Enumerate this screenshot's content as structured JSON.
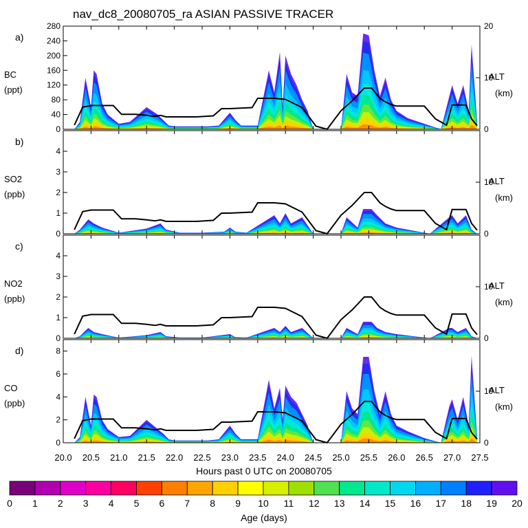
{
  "chart_data": {
    "type": "area",
    "title": "nav_dc8_20080705_ra ASIAN PASSIVE TRACER",
    "xlabel": "Hours past 0 UTC on 20080705",
    "xlim": [
      20.0,
      27.5
    ],
    "x_ticks": [
      "20.0",
      "20.5",
      "21.0",
      "21.5",
      "22.0",
      "22.5",
      "23.0",
      "23.5",
      "24.0",
      "24.5",
      "25.0",
      "25.5",
      "26.0",
      "26.5",
      "27.0",
      "27.5"
    ],
    "altitude_axis": {
      "label": "ALT",
      "units": "(km)",
      "range": [
        0,
        20
      ],
      "ticks": [
        "0",
        "10",
        "20"
      ]
    },
    "altitude_track": {
      "x": [
        20.2,
        20.35,
        20.5,
        20.9,
        21.05,
        21.3,
        21.5,
        21.65,
        21.75,
        21.85,
        22.1,
        22.4,
        22.7,
        22.85,
        23.0,
        23.4,
        23.5,
        23.8,
        24.0,
        24.3,
        24.55,
        24.75,
        25.0,
        25.2,
        25.42,
        25.55,
        25.7,
        25.8,
        25.9,
        26.0,
        26.5,
        26.7,
        26.9,
        27.0,
        27.25,
        27.35,
        27.45
      ],
      "y": [
        0.8,
        4.3,
        4.6,
        4.6,
        2.9,
        2.9,
        2.7,
        2.5,
        2.7,
        2.4,
        2.4,
        2.4,
        2.6,
        4.0,
        4.0,
        4.2,
        6.0,
        6.0,
        5.8,
        4.2,
        0.6,
        0,
        3.6,
        5.5,
        8.0,
        8.0,
        6.0,
        5.3,
        4.8,
        4.5,
        4.5,
        2.0,
        0.8,
        4.7,
        4.7,
        2.0,
        0.7
      ]
    },
    "panels": [
      {
        "letter": "a)",
        "species": "BC",
        "units": "(ppt)",
        "ylim": [
          0,
          280
        ],
        "ticks": [
          "0",
          "40",
          "80",
          "120",
          "160",
          "200",
          "240",
          "280"
        ],
        "x": [
          20.2,
          20.3,
          20.4,
          20.5,
          20.55,
          20.6,
          20.7,
          20.8,
          21.0,
          21.2,
          21.5,
          21.7,
          21.8,
          21.9,
          22.0,
          22.3,
          22.6,
          22.8,
          23.0,
          23.1,
          23.2,
          23.5,
          23.7,
          23.8,
          23.9,
          23.95,
          24.0,
          24.1,
          24.2,
          24.3,
          24.4,
          24.5,
          25.0,
          25.1,
          25.2,
          25.3,
          25.4,
          25.5,
          25.6,
          25.7,
          25.8,
          25.9,
          26.0,
          26.2,
          26.5,
          26.8,
          26.95,
          27.0,
          27.1,
          27.2,
          27.3,
          27.35,
          27.45
        ],
        "y": [
          0,
          20,
          140,
          60,
          160,
          150,
          70,
          40,
          15,
          20,
          60,
          40,
          25,
          10,
          8,
          8,
          8,
          10,
          45,
          25,
          10,
          10,
          160,
          100,
          210,
          60,
          200,
          150,
          120,
          80,
          50,
          0,
          0,
          150,
          100,
          90,
          260,
          255,
          160,
          90,
          140,
          80,
          50,
          30,
          15,
          0,
          90,
          120,
          70,
          120,
          50,
          230,
          20
        ]
      },
      {
        "letter": "b)",
        "species": "SO2",
        "units": "(ppb)",
        "ylim": [
          0,
          5
        ],
        "ticks": [
          "0",
          "1",
          "2",
          "3",
          "4"
        ],
        "x": [
          20.2,
          20.3,
          20.45,
          20.55,
          20.7,
          21.0,
          21.5,
          21.75,
          21.85,
          22.1,
          22.5,
          22.9,
          23.0,
          23.1,
          23.3,
          23.8,
          23.9,
          24.0,
          24.1,
          24.3,
          24.5,
          25.0,
          25.1,
          25.3,
          25.4,
          25.55,
          25.65,
          25.8,
          26.0,
          26.3,
          26.6,
          26.95,
          27.0,
          27.1,
          27.25,
          27.35,
          27.45
        ],
        "y": [
          0,
          0.2,
          0.7,
          0.5,
          0.3,
          0.05,
          0.25,
          0.5,
          0.2,
          0.05,
          0.05,
          0.1,
          0.3,
          0.1,
          0.05,
          0.9,
          0.5,
          1.0,
          0.5,
          0.8,
          0,
          0,
          0.8,
          0.3,
          1.2,
          1.2,
          0.9,
          0.5,
          0.3,
          0.15,
          0,
          0.8,
          0.9,
          0.5,
          0.9,
          0.2,
          0
        ]
      },
      {
        "letter": "c)",
        "species": "NO2",
        "units": "(ppb)",
        "ylim": [
          0,
          5
        ],
        "ticks": [
          "0",
          "1",
          "2",
          "3",
          "4"
        ],
        "x": [
          20.2,
          20.3,
          20.45,
          20.55,
          20.7,
          21.0,
          21.5,
          21.75,
          21.85,
          22.1,
          22.5,
          23.0,
          23.1,
          23.3,
          23.8,
          23.9,
          24.0,
          24.1,
          24.3,
          24.5,
          25.0,
          25.1,
          25.3,
          25.4,
          25.55,
          25.65,
          25.8,
          26.0,
          26.3,
          26.6,
          26.95,
          27.0,
          27.1,
          27.25,
          27.35,
          27.45
        ],
        "y": [
          0,
          0.1,
          0.5,
          0.3,
          0.2,
          0.03,
          0.15,
          0.3,
          0.1,
          0.03,
          0.03,
          0.2,
          0.05,
          0.03,
          0.5,
          0.3,
          0.6,
          0.3,
          0.5,
          0,
          0,
          0.5,
          0.2,
          0.8,
          0.8,
          0.5,
          0.3,
          0.2,
          0.1,
          0,
          0.5,
          0.5,
          0.3,
          0.5,
          0.1,
          0
        ]
      },
      {
        "letter": "d)",
        "species": "CO",
        "units": "(ppb)",
        "ylim": [
          0,
          9
        ],
        "ticks": [
          "0",
          "2",
          "4",
          "6",
          "8"
        ],
        "x": [
          20.2,
          20.3,
          20.4,
          20.5,
          20.55,
          20.6,
          20.7,
          20.8,
          21.0,
          21.2,
          21.5,
          21.7,
          21.8,
          21.9,
          22.0,
          22.3,
          22.6,
          22.8,
          23.0,
          23.1,
          23.2,
          23.5,
          23.7,
          23.8,
          23.9,
          23.95,
          24.0,
          24.1,
          24.2,
          24.3,
          24.4,
          24.5,
          25.0,
          25.1,
          25.2,
          25.3,
          25.4,
          25.5,
          25.6,
          25.7,
          25.8,
          25.9,
          26.0,
          26.2,
          26.5,
          26.8,
          26.95,
          27.0,
          27.1,
          27.2,
          27.3,
          27.35,
          27.45
        ],
        "y": [
          0,
          0.5,
          4.0,
          1.5,
          4.2,
          4.0,
          2.0,
          1.2,
          0.5,
          0.6,
          2.0,
          1.2,
          0.8,
          0.3,
          0.2,
          0.2,
          0.2,
          0.3,
          1.5,
          0.8,
          0.3,
          0.3,
          5.5,
          3.0,
          4.8,
          2.0,
          5.0,
          4.0,
          3.5,
          2.5,
          1.5,
          0,
          0,
          4.5,
          3.0,
          2.5,
          7.5,
          7.5,
          4.5,
          2.5,
          4.5,
          2.5,
          1.5,
          1.0,
          0.4,
          0,
          3.2,
          3.8,
          2.0,
          4.0,
          1.5,
          7.6,
          0.5
        ]
      }
    ],
    "colorbar": {
      "label": "Age (days)",
      "ticks": [
        "0",
        "1",
        "2",
        "3",
        "4",
        "5",
        "6",
        "7",
        "8",
        "9",
        "10",
        "11",
        "12",
        "13",
        "14",
        "15",
        "16",
        "17",
        "18",
        "19",
        "20"
      ],
      "colors": [
        "#7a007a",
        "#b000b0",
        "#e000c8",
        "#ff00a0",
        "#ff0060",
        "#ff4000",
        "#ff8000",
        "#ffa500",
        "#ffd000",
        "#ffff00",
        "#d8f000",
        "#a0e000",
        "#50e050",
        "#00e890",
        "#00e8c8",
        "#00d8f0",
        "#00b0ff",
        "#0080ff",
        "#2020ff",
        "#6010f0"
      ]
    },
    "layer_colors": [
      "#6a2cf0",
      "#2a2af0",
      "#0090ff",
      "#00c8ff",
      "#00e8e0",
      "#00e890",
      "#60e840",
      "#c8f000",
      "#ffd000",
      "#ff9000"
    ]
  }
}
